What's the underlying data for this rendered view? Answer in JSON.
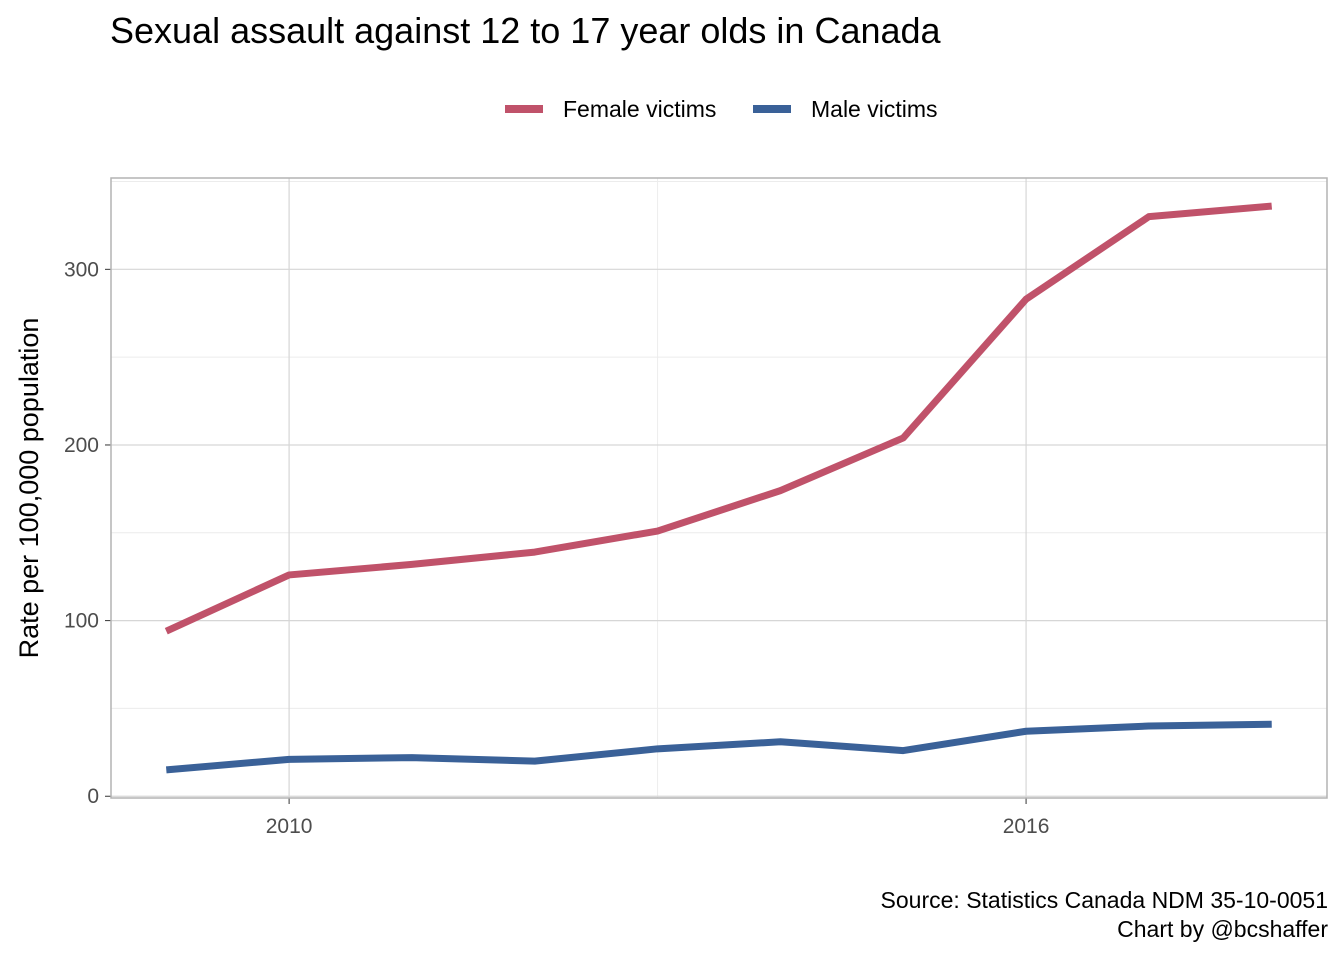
{
  "chart_data": {
    "type": "line",
    "title": "Sexual assault against 12 to 17 year olds in Canada",
    "xlabel": "",
    "ylabel": "Rate per 100,000 population",
    "x": [
      2009,
      2010,
      2011,
      2012,
      2013,
      2014,
      2015,
      2016,
      2017,
      2018
    ],
    "xlim": [
      2008.55,
      2018.45
    ],
    "ylim": [
      -1,
      352
    ],
    "x_ticks": [
      2010,
      2016
    ],
    "x_tick_labels": [
      "2010",
      "2016"
    ],
    "y_ticks": [
      0,
      100,
      200,
      300
    ],
    "y_tick_labels": [
      "0",
      "100",
      "200",
      "300"
    ],
    "grid": true,
    "legend_position": "top",
    "series": [
      {
        "name": "Female victims",
        "color": "#c0526a",
        "values": [
          94,
          126,
          132,
          139,
          151,
          174,
          204,
          283,
          330,
          336
        ]
      },
      {
        "name": "Male victims",
        "color": "#3a6198",
        "values": [
          15,
          21,
          22,
          20,
          27,
          31,
          26,
          37,
          40,
          41
        ]
      }
    ],
    "caption": [
      "Source: Statistics Canada NDM 35-10-0051",
      "Chart by @bcshaffer"
    ]
  }
}
